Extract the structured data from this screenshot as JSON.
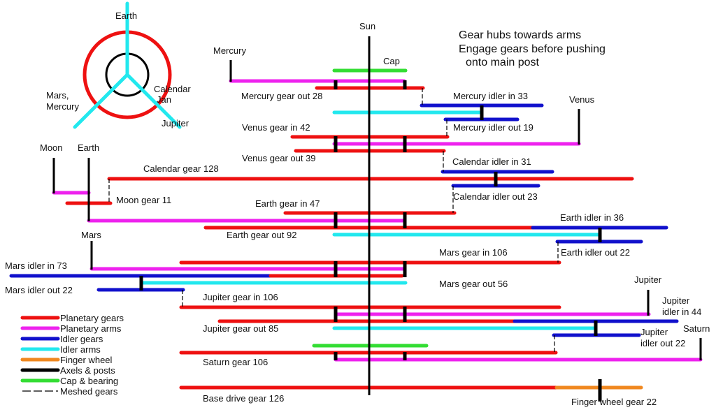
{
  "colors": {
    "planetary_gears": "#ee1111",
    "planetary_arms": "#ee22ee",
    "idler_gears": "#1111cc",
    "idler_arms": "#22e8ee",
    "finger_wheel": "#f08820",
    "axels_posts": "#000000",
    "cap_bearing": "#33dd33"
  },
  "notes": [
    "Gear hubs towards arms",
    "Engage gears before pushing",
    "onto main post"
  ],
  "top_view": {
    "earth": "Earth",
    "mars_mercury": [
      "Mars,",
      "Mercury"
    ],
    "calendar_jan": [
      "Calendar",
      "Jan"
    ],
    "jupiter": "Jupiter"
  },
  "posts": {
    "sun": "Sun",
    "cap": "Cap",
    "mercury": "Mercury",
    "venus": "Venus",
    "moon": "Moon",
    "earth": "Earth",
    "mars": "Mars",
    "jupiter": "Jupiter",
    "saturn": "Saturn"
  },
  "gears": {
    "mercury_gear_out": "Mercury gear out 28",
    "mercury_idler_in": "Mercury idler in 33",
    "mercury_idler_out": "Mercury idler out 19",
    "venus_gear_in": "Venus gear in 42",
    "venus_gear_out": "Venus gear out 39",
    "calendar_idler_in": "Calendar idler in 31",
    "calendar_gear": "Calendar gear 128",
    "calendar_idler_out": "Calendar idler out 23",
    "moon_gear": "Moon gear 11",
    "earth_gear_in": "Earth gear in 47",
    "earth_idler_in": "Earth idler in 36",
    "earth_gear_out": "Earth gear out 92",
    "earth_idler_out": "Earth idler out 22",
    "mars_gear_in": "Mars gear in 106",
    "mars_idler_in": "Mars idler in 73",
    "mars_gear_out": "Mars gear out 56",
    "mars_idler_out": "Mars idler out 22",
    "jupiter_gear_in": "Jupiter gear in 106",
    "jupiter_idler_in": [
      "Jupiter",
      "idler in 44"
    ],
    "jupiter_gear_out": "Jupiter gear out 85",
    "jupiter_idler_out": [
      "Jupiter",
      "idler out 22"
    ],
    "saturn_gear": "Saturn gear 106",
    "base_drive_gear": "Base drive gear 126",
    "finger_wheel_gear": "Finger wheel gear 22"
  },
  "legend": [
    "Planetary gears",
    "Planetary arms",
    "Idler gears",
    "Idler arms",
    "Finger wheel",
    "Axels & posts",
    "Cap & bearing",
    "Meshed gears"
  ]
}
